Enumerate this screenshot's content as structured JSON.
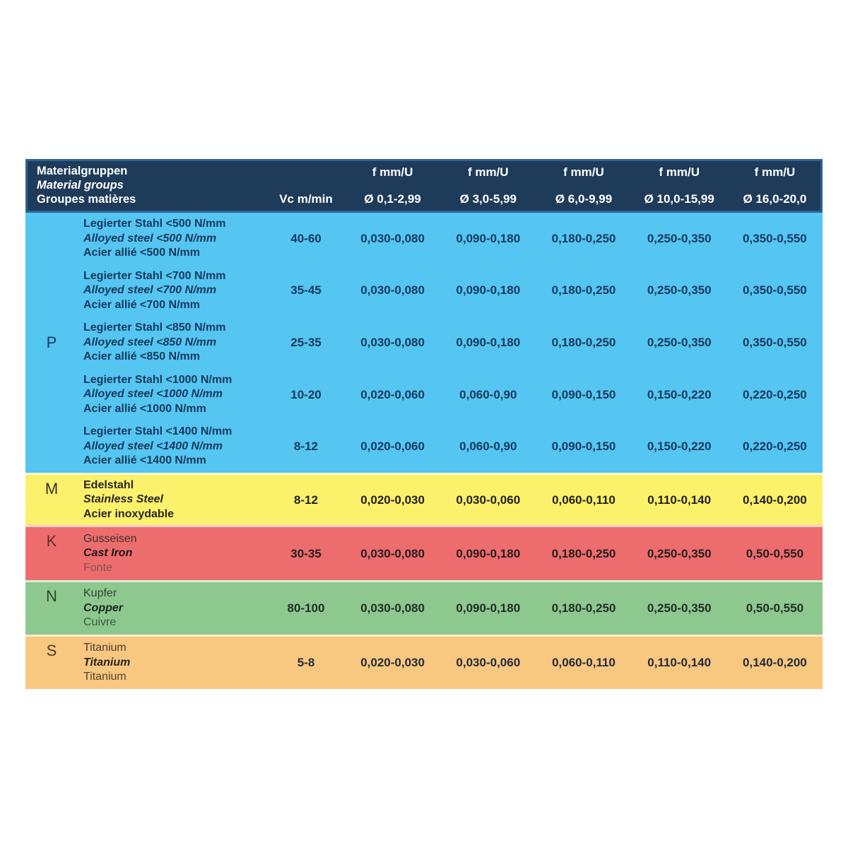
{
  "colors": {
    "header_bg": "#1e3c5a",
    "header_border": "#2e6495",
    "header_text": "#ffffff",
    "section_p_bg": "#55c5f1",
    "section_m_bg": "#fbf16b",
    "section_k_bg": "#ed6d6e",
    "section_n_bg": "#8dc88e",
    "section_s_bg": "#f8c780",
    "navy_text": "#16395d"
  },
  "table": {
    "header": {
      "title_de": "Materialgruppen",
      "title_en": "Material groups",
      "title_fr": "Groupes matières",
      "vc_label": "Vc m/min",
      "f_label": "f mm/U",
      "diameters": [
        "Ø 0,1-2,99",
        "Ø 3,0-5,99",
        "Ø 6,0-9,99",
        "Ø 10,0-15,99",
        "Ø 16,0-20,0"
      ]
    },
    "sections": [
      {
        "letter": "P",
        "bg": "#55c5f1",
        "rows": [
          {
            "de": "Legierter Stahl <500 N/mm",
            "en": "Alloyed steel <500 N/mm",
            "fr": "Acier allié <500 N/mm",
            "vc": "40-60",
            "f": [
              "0,030-0,080",
              "0,090-0,180",
              "0,180-0,250",
              "0,250-0,350",
              "0,350-0,550"
            ]
          },
          {
            "de": "Legierter Stahl <700 N/mm",
            "en": "Alloyed steel <700 N/mm",
            "fr": "Acier allié <700 N/mm",
            "vc": "35-45",
            "f": [
              "0,030-0,080",
              "0,090-0,180",
              "0,180-0,250",
              "0,250-0,350",
              "0,350-0,550"
            ]
          },
          {
            "de": "Legierter Stahl <850 N/mm",
            "en": "Alloyed steel <850 N/mm",
            "fr": "Acier allié <850 N/mm",
            "vc": "25-35",
            "f": [
              "0,030-0,080",
              "0,090-0,180",
              "0,180-0,250",
              "0,250-0,350",
              "0,350-0,550"
            ]
          },
          {
            "de": "Legierter Stahl <1000 N/mm",
            "en": "Alloyed steel <1000 N/mm",
            "fr": "Acier allié <1000 N/mm",
            "vc": "10-20",
            "f": [
              "0,020-0,060",
              "0,060-0,90",
              "0,090-0,150",
              "0,150-0,220",
              "0,220-0,250"
            ]
          },
          {
            "de": "Legierter Stahl <1400 N/mm",
            "en": "Alloyed steel <1400 N/mm",
            "fr": "Acier allié <1400 N/mm",
            "vc": "8-12",
            "f": [
              "0,020-0,060",
              "0,060-0,90",
              "0,090-0,150",
              "0,150-0,220",
              "0,220-0,250"
            ]
          }
        ]
      },
      {
        "letter": "M",
        "bg": "#fbf16b",
        "rows": [
          {
            "de": "Edelstahl",
            "en": "Stainless Steel",
            "fr": "Acier inoxydable",
            "vc": "8-12",
            "f": [
              "0,020-0,030",
              "0,030-0,060",
              "0,060-0,110",
              "0,110-0,140",
              "0,140-0,200"
            ]
          }
        ]
      },
      {
        "letter": "K",
        "bg": "#ed6d6e",
        "rows": [
          {
            "de": "Gusseisen",
            "en": "Cast Iron",
            "fr": "Fonte",
            "vc": "30-35",
            "f": [
              "0,030-0,080",
              "0,090-0,180",
              "0,180-0,250",
              "0,250-0,350",
              "0,50-0,550"
            ]
          }
        ]
      },
      {
        "letter": "N",
        "bg": "#8dc88e",
        "rows": [
          {
            "de": "Kupfer",
            "en": "Copper",
            "fr": "Cuivre",
            "vc": "80-100",
            "f": [
              "0,030-0,080",
              "0,090-0,180",
              "0,180-0,250",
              "0,250-0,350",
              "0,50-0,550"
            ]
          }
        ]
      },
      {
        "letter": "S",
        "bg": "#f8c780",
        "rows": [
          {
            "de": "Titanium",
            "en": "Titanium",
            "fr": "Titanium",
            "vc": "5-8",
            "f": [
              "0,020-0,030",
              "0,030-0,060",
              "0,060-0,110",
              "0,110-0,140",
              "0,140-0,200"
            ]
          }
        ]
      }
    ]
  }
}
